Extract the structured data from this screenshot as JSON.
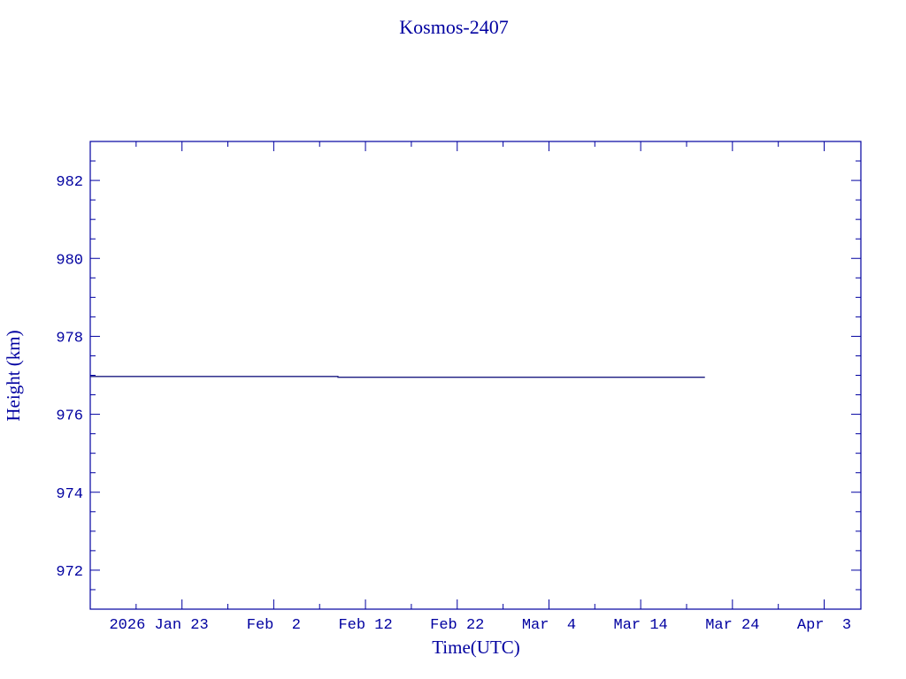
{
  "chart_data": {
    "type": "line",
    "title": "Kosmos-2407",
    "xlabel": "Time(UTC)",
    "ylabel": "Height (km)",
    "xlim": [
      "2026-01-13",
      "2026-04-07"
    ],
    "ylim": [
      971,
      983
    ],
    "x_ticks": [
      {
        "date": "2026-01-23",
        "label": "2026 Jan 23"
      },
      {
        "date": "2026-02-02",
        "label": "Feb  2"
      },
      {
        "date": "2026-02-12",
        "label": "Feb 12"
      },
      {
        "date": "2026-02-22",
        "label": "Feb 22"
      },
      {
        "date": "2026-03-04",
        "label": "Mar  4"
      },
      {
        "date": "2026-03-14",
        "label": "Mar 14"
      },
      {
        "date": "2026-03-24",
        "label": "Mar 24"
      },
      {
        "date": "2026-04-03",
        "label": "Apr  3"
      }
    ],
    "y_ticks": [
      972,
      974,
      976,
      978,
      980,
      982
    ],
    "grid": false,
    "series": [
      {
        "points": [
          {
            "x": "2026-01-13",
            "y": 976.97
          },
          {
            "x": "2026-02-09",
            "y": 976.97
          },
          {
            "x": "2026-02-09",
            "y": 976.95
          },
          {
            "x": "2026-03-21",
            "y": 976.95
          }
        ]
      }
    ],
    "colors": {
      "axes": "#0000a0",
      "line": "#1a1a80",
      "text": "#0000a0"
    }
  }
}
